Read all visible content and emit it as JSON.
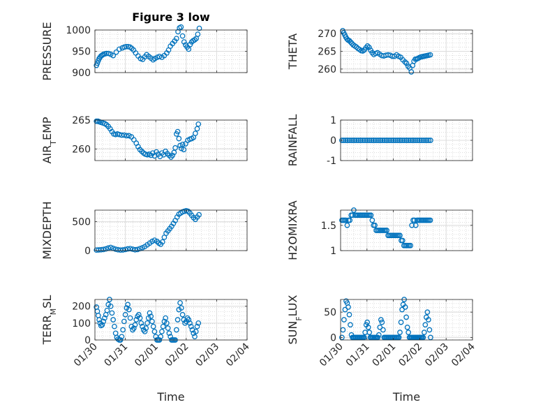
{
  "figure_title": "Figure 3 low",
  "colors": {
    "marker": "#0072BD",
    "grid": "#c8c8c8",
    "axis": "#262626"
  },
  "chart_data": [
    {
      "type": "scatter",
      "ylabel": "PRESSURE",
      "ylim": [
        900,
        1000
      ],
      "yticks": [
        900,
        950,
        1000
      ],
      "xticks": [
        "01/30",
        "01/31",
        "02/01",
        "02/02",
        "02/03",
        "02/04"
      ],
      "xlabel": "",
      "grid": true,
      "x": [
        0.05,
        0.08,
        0.11,
        0.14,
        0.17,
        0.2,
        0.24,
        0.28,
        0.33,
        0.38,
        0.45,
        0.52,
        0.6,
        0.7,
        0.8,
        0.9,
        0.97,
        1.03,
        1.09,
        1.15,
        1.21,
        1.27,
        1.34,
        1.42,
        1.5,
        1.57,
        1.64,
        1.7,
        1.77,
        1.84,
        1.91,
        1.97,
        2.05,
        2.12,
        2.2,
        2.28,
        2.36,
        2.42,
        2.48,
        2.55,
        2.62,
        2.68,
        2.73,
        2.78,
        2.83,
        2.88,
        2.93,
        2.98,
        3.03,
        3.08,
        3.13,
        3.18,
        3.23,
        3.28,
        3.33,
        3.38,
        3.43
      ],
      "y": [
        917,
        922,
        928,
        933,
        936,
        939,
        941,
        943,
        944,
        945,
        945,
        943,
        940,
        948,
        955,
        958,
        960,
        961,
        961,
        960,
        957,
        953,
        946,
        939,
        933,
        931,
        937,
        942,
        938,
        934,
        930,
        933,
        936,
        938,
        936,
        940,
        946,
        953,
        962,
        968,
        974,
        980,
        996,
        1005,
        1007,
        986,
        972,
        965,
        960,
        955,
        966,
        972,
        975,
        977,
        980,
        990,
        1004
      ]
    },
    {
      "type": "scatter",
      "ylabel": "THETA",
      "ylim": [
        259,
        271
      ],
      "yticks": [
        260,
        265,
        270
      ],
      "xticks": [
        "01/30",
        "01/31",
        "02/01",
        "02/02",
        "02/03",
        "02/04"
      ],
      "xlabel": "",
      "grid": true,
      "x": [
        0.08,
        0.12,
        0.16,
        0.2,
        0.24,
        0.28,
        0.33,
        0.38,
        0.43,
        0.48,
        0.54,
        0.6,
        0.66,
        0.72,
        0.78,
        0.84,
        0.9,
        0.96,
        1.02,
        1.08,
        1.14,
        1.2,
        1.26,
        1.33,
        1.4,
        1.48,
        1.56,
        1.64,
        1.72,
        1.8,
        1.88,
        1.96,
        2.04,
        2.12,
        2.2,
        2.28,
        2.36,
        2.44,
        2.5,
        2.56,
        2.62,
        2.68,
        2.73,
        2.78,
        2.83,
        2.88,
        2.93,
        2.98,
        3.04,
        3.1,
        3.16,
        3.22,
        3.28,
        3.34,
        3.4
      ],
      "y": [
        270.8,
        270.2,
        269.6,
        269,
        268.5,
        268.2,
        268,
        267.6,
        267.2,
        266.8,
        266.5,
        266.2,
        265.8,
        265.5,
        265.2,
        265.1,
        265.4,
        266,
        266.5,
        266.1,
        265.3,
        264.6,
        264.1,
        264.4,
        264.6,
        264.2,
        263.8,
        263.7,
        263.9,
        264,
        263.9,
        263.6,
        263.6,
        264,
        263.6,
        263.3,
        262.6,
        262,
        261.6,
        260.8,
        260.3,
        259.2,
        261,
        262.2,
        262.8,
        262.8,
        263,
        263.2,
        263.4,
        263.5,
        263.6,
        263.7,
        263.8,
        263.9,
        264
      ]
    },
    {
      "type": "scatter",
      "ylabel": "AIR_TEMP",
      "ylim": [
        258,
        265
      ],
      "yticks": [
        260,
        265
      ],
      "xticks": [
        "01/30",
        "01/31",
        "02/01",
        "02/02",
        "02/03",
        "02/04"
      ],
      "xlabel": "",
      "grid": true,
      "x": [
        0.05,
        0.1,
        0.15,
        0.2,
        0.26,
        0.32,
        0.38,
        0.44,
        0.5,
        0.56,
        0.62,
        0.68,
        0.74,
        0.8,
        0.88,
        0.96,
        1.04,
        1.12,
        1.2,
        1.28,
        1.36,
        1.42,
        1.48,
        1.54,
        1.6,
        1.66,
        1.72,
        1.78,
        1.84,
        1.9,
        1.96,
        2.02,
        2.08,
        2.14,
        2.2,
        2.26,
        2.32,
        2.38,
        2.44,
        2.5,
        2.55,
        2.6,
        2.64,
        2.68,
        2.72,
        2.76,
        2.8,
        2.84,
        2.88,
        2.92,
        2.98,
        3.05,
        3.12,
        3.18,
        3.24,
        3.3,
        3.36,
        3.4
      ],
      "y": [
        264.8,
        264.8,
        264.7,
        264.6,
        264.5,
        264.4,
        264.2,
        263.9,
        263.5,
        263,
        262.6,
        262.5,
        262.6,
        262.5,
        262.4,
        262.4,
        262.3,
        262.3,
        262.1,
        261.6,
        261,
        260.4,
        259.9,
        259.6,
        259.3,
        259.1,
        259,
        259.1,
        258.9,
        259.3,
        258.8,
        259.5,
        259.1,
        258.7,
        259.3,
        259,
        259.6,
        259.2,
        258.9,
        258.6,
        258.9,
        259.4,
        260.2,
        262.6,
        263,
        261.8,
        260.6,
        260.1,
        260.8,
        259.9,
        260.9,
        261.5,
        261.7,
        261.8,
        262,
        262.7,
        263.5,
        264.3
      ]
    },
    {
      "type": "scatter",
      "ylabel": "RAINFALL",
      "ylim": [
        -1,
        1
      ],
      "yticks": [
        -1,
        0,
        1
      ],
      "xticks": [
        "01/30",
        "01/31",
        "02/01",
        "02/02",
        "02/03",
        "02/04"
      ],
      "xlabel": "",
      "grid": true,
      "x": [
        0.05,
        0.12,
        0.19,
        0.26,
        0.33,
        0.4,
        0.47,
        0.54,
        0.61,
        0.68,
        0.75,
        0.82,
        0.89,
        0.96,
        1.03,
        1.1,
        1.17,
        1.24,
        1.31,
        1.38,
        1.45,
        1.52,
        1.59,
        1.66,
        1.73,
        1.8,
        1.87,
        1.94,
        2.01,
        2.08,
        2.15,
        2.22,
        2.29,
        2.36,
        2.43,
        2.5,
        2.57,
        2.64,
        2.71,
        2.78,
        2.85,
        2.92,
        2.99,
        3.06,
        3.13,
        3.2,
        3.27,
        3.34,
        3.41
      ],
      "y": [
        0,
        0,
        0,
        0,
        0,
        0,
        0,
        0,
        0,
        0,
        0,
        0,
        0,
        0,
        0,
        0,
        0,
        0,
        0,
        0,
        0,
        0,
        0,
        0,
        0,
        0,
        0,
        0,
        0,
        0,
        0,
        0,
        0,
        0,
        0,
        0,
        0,
        0,
        0,
        0,
        0,
        0,
        0,
        0,
        0,
        0,
        0,
        0,
        0
      ]
    },
    {
      "type": "scatter",
      "ylabel": "MIXDEPTH",
      "ylim": [
        0,
        700
      ],
      "yticks": [
        0,
        500
      ],
      "xticks": [
        "01/30",
        "01/31",
        "02/01",
        "02/02",
        "02/03",
        "02/04"
      ],
      "xlabel": "",
      "grid": true,
      "x": [
        0.05,
        0.12,
        0.2,
        0.28,
        0.36,
        0.44,
        0.52,
        0.6,
        0.68,
        0.76,
        0.84,
        0.92,
        1.0,
        1.08,
        1.16,
        1.24,
        1.32,
        1.4,
        1.48,
        1.56,
        1.64,
        1.72,
        1.8,
        1.88,
        1.96,
        2.04,
        2.1,
        2.16,
        2.22,
        2.28,
        2.34,
        2.4,
        2.46,
        2.52,
        2.58,
        2.64,
        2.7,
        2.76,
        2.82,
        2.88,
        2.94,
        3.0,
        3.06,
        3.12,
        3.18,
        3.24,
        3.3,
        3.36,
        3.42
      ],
      "y": [
        10,
        12,
        15,
        20,
        30,
        45,
        55,
        40,
        25,
        15,
        10,
        12,
        20,
        30,
        35,
        25,
        15,
        20,
        35,
        50,
        70,
        100,
        130,
        160,
        180,
        160,
        130,
        110,
        150,
        230,
        300,
        340,
        380,
        420,
        470,
        520,
        580,
        630,
        650,
        670,
        680,
        690,
        680,
        650,
        610,
        570,
        540,
        580,
        620
      ]
    },
    {
      "type": "scatter",
      "ylabel": "H2OMIXRA",
      "ylim": [
        1,
        1.8
      ],
      "yticks": [
        1,
        1.5
      ],
      "xticks": [
        "01/30",
        "01/31",
        "02/01",
        "02/02",
        "02/03",
        "02/04"
      ],
      "xlabel": "",
      "grid": true,
      "x": [
        0.05,
        0.1,
        0.15,
        0.2,
        0.25,
        0.3,
        0.35,
        0.4,
        0.45,
        0.5,
        0.55,
        0.6,
        0.65,
        0.7,
        0.75,
        0.8,
        0.85,
        0.9,
        0.95,
        1.0,
        1.05,
        1.1,
        1.15,
        1.2,
        1.25,
        1.3,
        1.35,
        1.4,
        1.45,
        1.5,
        1.55,
        1.6,
        1.65,
        1.7,
        1.75,
        1.8,
        1.85,
        1.9,
        1.95,
        2.0,
        2.05,
        2.1,
        2.15,
        2.2,
        2.25,
        2.3,
        2.35,
        2.4,
        2.45,
        2.5,
        2.55,
        2.6,
        2.65,
        2.7,
        2.75,
        2.8,
        2.85,
        2.9,
        2.95,
        3.0,
        3.05,
        3.1,
        3.15,
        3.2,
        3.25,
        3.3,
        3.35,
        3.4
      ],
      "y": [
        1.6,
        1.6,
        1.6,
        1.6,
        1.5,
        1.6,
        1.6,
        1.7,
        1.7,
        1.8,
        1.7,
        1.7,
        1.7,
        1.7,
        1.7,
        1.7,
        1.7,
        1.7,
        1.7,
        1.7,
        1.7,
        1.7,
        1.7,
        1.6,
        1.5,
        1.5,
        1.4,
        1.4,
        1.4,
        1.4,
        1.4,
        1.4,
        1.4,
        1.4,
        1.4,
        1.3,
        1.3,
        1.3,
        1.3,
        1.3,
        1.3,
        1.3,
        1.3,
        1.3,
        1.3,
        1.2,
        1.2,
        1.1,
        1.1,
        1.1,
        1.1,
        1.1,
        1.1,
        1.5,
        1.6,
        1.6,
        1.5,
        1.6,
        1.6,
        1.6,
        1.6,
        1.6,
        1.6,
        1.6,
        1.6,
        1.6,
        1.6,
        1.6
      ]
    },
    {
      "type": "scatter",
      "ylabel": "TERR_MSL",
      "ylim": [
        0,
        240
      ],
      "yticks": [
        0,
        100,
        200
      ],
      "xticks": [
        "01/30",
        "01/31",
        "02/01",
        "02/02",
        "02/03",
        "02/04"
      ],
      "xlabel": "Time",
      "grid": true,
      "x": [
        0.05,
        0.08,
        0.11,
        0.14,
        0.17,
        0.2,
        0.24,
        0.28,
        0.32,
        0.36,
        0.4,
        0.44,
        0.48,
        0.52,
        0.56,
        0.6,
        0.64,
        0.68,
        0.72,
        0.76,
        0.8,
        0.84,
        0.88,
        0.92,
        0.96,
        1.0,
        1.04,
        1.08,
        1.12,
        1.16,
        1.2,
        1.24,
        1.28,
        1.32,
        1.36,
        1.4,
        1.44,
        1.48,
        1.52,
        1.56,
        1.6,
        1.64,
        1.68,
        1.72,
        1.76,
        1.8,
        1.84,
        1.88,
        1.92,
        1.96,
        2.0,
        2.04,
        2.08,
        2.12,
        2.16,
        2.2,
        2.24,
        2.28,
        2.32,
        2.36,
        2.4,
        2.44,
        2.48,
        2.52,
        2.56,
        2.6,
        2.64,
        2.68,
        2.72,
        2.76,
        2.8,
        2.84,
        2.88,
        2.92,
        2.96,
        3.0,
        3.04,
        3.08,
        3.12,
        3.16,
        3.2,
        3.24,
        3.28,
        3.32,
        3.36,
        3.4
      ],
      "y": [
        195,
        170,
        145,
        120,
        100,
        85,
        90,
        110,
        130,
        150,
        175,
        210,
        240,
        200,
        160,
        120,
        80,
        40,
        15,
        5,
        0,
        0,
        20,
        60,
        110,
        150,
        190,
        210,
        180,
        130,
        80,
        60,
        70,
        90,
        120,
        140,
        150,
        130,
        100,
        80,
        60,
        50,
        70,
        100,
        130,
        160,
        140,
        110,
        80,
        50,
        20,
        0,
        0,
        0,
        20,
        50,
        80,
        110,
        130,
        100,
        70,
        40,
        20,
        0,
        0,
        0,
        0,
        60,
        120,
        180,
        220,
        190,
        150,
        120,
        100,
        110,
        130,
        120,
        100,
        80,
        60,
        40,
        20,
        50,
        80,
        100
      ]
    },
    {
      "type": "scatter",
      "ylabel": "SUN_FLUX",
      "ylim": [
        -5,
        75
      ],
      "yticks": [
        0,
        50
      ],
      "xticks": [
        "01/30",
        "01/31",
        "02/01",
        "02/02",
        "02/03",
        "02/04"
      ],
      "xlabel": "Time",
      "grid": true,
      "x": [
        0.05,
        0.09,
        0.13,
        0.17,
        0.21,
        0.25,
        0.29,
        0.33,
        0.37,
        0.41,
        0.45,
        0.49,
        0.53,
        0.57,
        0.61,
        0.65,
        0.69,
        0.73,
        0.77,
        0.81,
        0.85,
        0.89,
        0.93,
        0.97,
        1.01,
        1.05,
        1.09,
        1.13,
        1.17,
        1.21,
        1.25,
        1.29,
        1.33,
        1.37,
        1.41,
        1.45,
        1.49,
        1.53,
        1.57,
        1.61,
        1.65,
        1.69,
        1.73,
        1.77,
        1.81,
        1.85,
        1.89,
        1.93,
        1.97,
        2.01,
        2.05,
        2.09,
        2.13,
        2.17,
        2.21,
        2.25,
        2.29,
        2.33,
        2.37,
        2.41,
        2.45,
        2.49,
        2.53,
        2.57,
        2.61,
        2.65,
        2.69,
        2.73,
        2.77,
        2.81,
        2.85,
        2.89,
        2.93,
        2.97,
        3.01,
        3.05,
        3.09,
        3.13,
        3.17,
        3.21,
        3.25,
        3.29,
        3.33,
        3.37,
        3.41
      ],
      "y": [
        0,
        15,
        35,
        55,
        72,
        68,
        60,
        45,
        25,
        5,
        0,
        0,
        0,
        0,
        0,
        0,
        0,
        0,
        0,
        0,
        0,
        0,
        10,
        25,
        30,
        20,
        10,
        0,
        0,
        0,
        0,
        0,
        0,
        0,
        0,
        5,
        20,
        35,
        30,
        15,
        0,
        0,
        0,
        0,
        0,
        0,
        0,
        0,
        0,
        0,
        0,
        0,
        0,
        0,
        0,
        10,
        30,
        55,
        65,
        75,
        60,
        40,
        20,
        10,
        0,
        0,
        0,
        0,
        0,
        0,
        0,
        0,
        0,
        0,
        0,
        0,
        0,
        0,
        10,
        25,
        40,
        50,
        35,
        15,
        0
      ]
    }
  ]
}
